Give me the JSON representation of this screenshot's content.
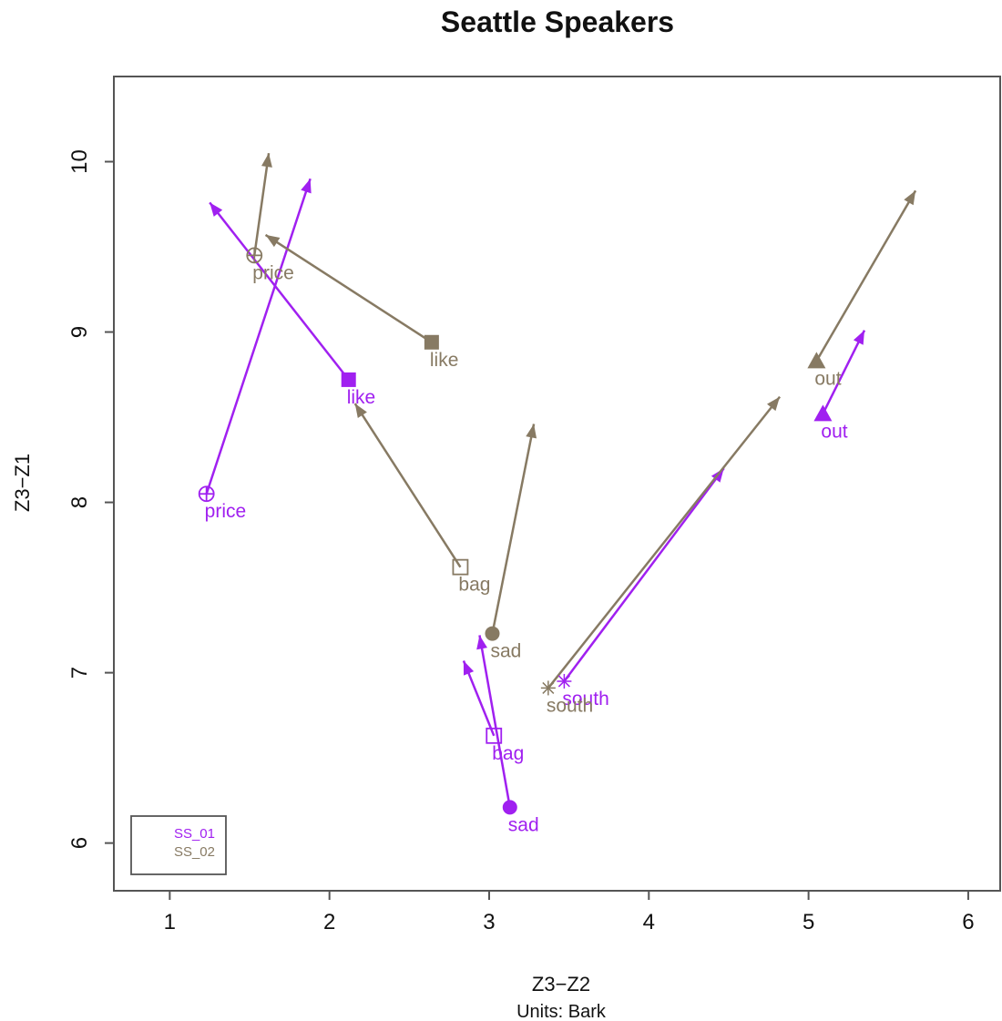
{
  "chart_data": {
    "type": "scatter",
    "title": "Seattle Speakers",
    "xlabel": "Z3−Z2",
    "xsublabel": "Units: Bark",
    "ylabel": "Z3−Z1",
    "xlim": [
      0.65,
      6.2
    ],
    "ylim": [
      5.72,
      10.5
    ],
    "xticks": [
      1,
      2,
      3,
      4,
      5,
      6
    ],
    "yticks": [
      6,
      7,
      8,
      9,
      10
    ],
    "legend_position": "bottom-left",
    "series": [
      {
        "name": "SS_01",
        "color": "#a020f0",
        "points": [
          {
            "label": "price",
            "marker": "circle-plus",
            "x": 1.23,
            "y": 8.05,
            "x2": 1.88,
            "y2": 9.9
          },
          {
            "label": "like",
            "marker": "square-filled",
            "x": 2.12,
            "y": 8.72,
            "x2": 1.25,
            "y2": 9.76
          },
          {
            "label": "bag",
            "marker": "square-open",
            "x": 3.03,
            "y": 6.63,
            "x2": 2.84,
            "y2": 7.07
          },
          {
            "label": "sad",
            "marker": "circle-filled",
            "x": 3.13,
            "y": 6.21,
            "x2": 2.94,
            "y2": 7.22
          },
          {
            "label": "south",
            "marker": "asterisk",
            "x": 3.47,
            "y": 6.95,
            "x2": 4.47,
            "y2": 8.2
          },
          {
            "label": "out",
            "marker": "triangle-filled",
            "x": 5.09,
            "y": 8.52,
            "x2": 5.35,
            "y2": 9.01
          }
        ]
      },
      {
        "name": "SS_02",
        "color": "#877a63",
        "points": [
          {
            "label": "price",
            "marker": "circle-plus",
            "x": 1.53,
            "y": 9.45,
            "x2": 1.62,
            "y2": 10.05
          },
          {
            "label": "like",
            "marker": "square-filled",
            "x": 2.64,
            "y": 8.94,
            "x2": 1.6,
            "y2": 9.57
          },
          {
            "label": "bag",
            "marker": "square-open",
            "x": 2.82,
            "y": 7.62,
            "x2": 2.16,
            "y2": 8.58
          },
          {
            "label": "sad",
            "marker": "circle-filled",
            "x": 3.02,
            "y": 7.23,
            "x2": 3.28,
            "y2": 8.46
          },
          {
            "label": "south",
            "marker": "asterisk",
            "x": 3.37,
            "y": 6.91,
            "x2": 4.82,
            "y2": 8.62
          },
          {
            "label": "out",
            "marker": "triangle-filled",
            "x": 5.05,
            "y": 8.83,
            "x2": 5.67,
            "y2": 9.83
          }
        ]
      }
    ]
  }
}
